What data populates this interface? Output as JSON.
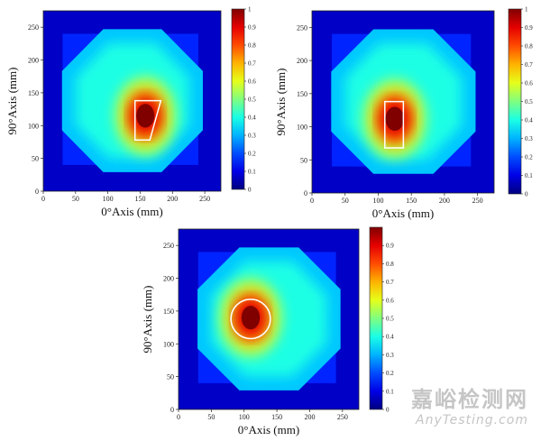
{
  "chart_data": [
    {
      "type": "heatmap",
      "xlabel": "0°Axis (mm)",
      "ylabel": "90°Axis (mm)",
      "xlim": [
        0,
        275
      ],
      "ylim": [
        0,
        275
      ],
      "xticks": [
        "0",
        "50",
        "100",
        "150",
        "200",
        "250"
      ],
      "yticks": [
        "0",
        "50",
        "100",
        "150",
        "200",
        "250"
      ],
      "colorbar": {
        "min": 0,
        "max": 1,
        "ticks": [
          "0",
          "0.1",
          "0.2",
          "0.3",
          "0.4",
          "0.5",
          "0.6",
          "0.7",
          "0.8",
          "0.9",
          "1"
        ]
      },
      "hotspot": {
        "x": 158,
        "y": 115,
        "intensity": 1.0
      },
      "defect_outline": {
        "shape": "trapezoid",
        "points": [
          [
            142,
            78
          ],
          [
            142,
            138
          ],
          [
            182,
            138
          ],
          [
            165,
            78
          ]
        ]
      }
    },
    {
      "type": "heatmap",
      "xlabel": "0°Axis (mm)",
      "ylabel": "90°Axis (mm)",
      "xlim": [
        0,
        275
      ],
      "ylim": [
        0,
        275
      ],
      "xticks": [
        "0",
        "50",
        "100",
        "150",
        "200",
        "250"
      ],
      "yticks": [
        "0",
        "50",
        "100",
        "150",
        "200",
        "250"
      ],
      "colorbar": {
        "min": 0,
        "max": 1,
        "ticks": [
          "0",
          "0.1",
          "0.2",
          "0.3",
          "0.4",
          "0.5",
          "0.6",
          "0.7",
          "0.8",
          "0.9",
          "1"
        ]
      },
      "hotspot": {
        "x": 125,
        "y": 112,
        "intensity": 1.0
      },
      "defect_outline": {
        "shape": "rectangle",
        "points": [
          [
            110,
            68
          ],
          [
            110,
            138
          ],
          [
            138,
            138
          ],
          [
            138,
            68
          ]
        ]
      }
    },
    {
      "type": "heatmap",
      "xlabel": "0°Axis (mm)",
      "ylabel": "90°Axis (mm)",
      "xlim": [
        0,
        275
      ],
      "ylim": [
        0,
        275
      ],
      "xticks": [
        "0",
        "50",
        "100",
        "150",
        "200",
        "250"
      ],
      "yticks": [
        "0",
        "50",
        "100",
        "150",
        "200",
        "250"
      ],
      "colorbar": {
        "min": 0,
        "max": 1,
        "ticks": [
          "0",
          "0.1",
          "0.2",
          "0.3",
          "0.4",
          "0.5",
          "0.6",
          "0.7",
          "0.8",
          "0.9"
        ]
      },
      "hotspot": {
        "x": 110,
        "y": 140,
        "intensity": 1.0
      },
      "defect_outline": {
        "shape": "circle",
        "center": [
          110,
          138
        ],
        "radius": 30
      }
    }
  ],
  "watermark": {
    "cn": "嘉峪检测网",
    "en": "AnyTesting.com"
  }
}
